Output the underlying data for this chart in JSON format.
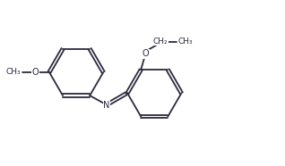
{
  "bg_color": "#ffffff",
  "bond_color": "#2a2a3e",
  "text_color": "#2a2a3e",
  "lw": 1.3,
  "dbo": 0.055,
  "fs": 7.0,
  "fs_small": 6.5,
  "xlim": [
    0,
    10.5
  ],
  "ylim": [
    0,
    6.0
  ]
}
